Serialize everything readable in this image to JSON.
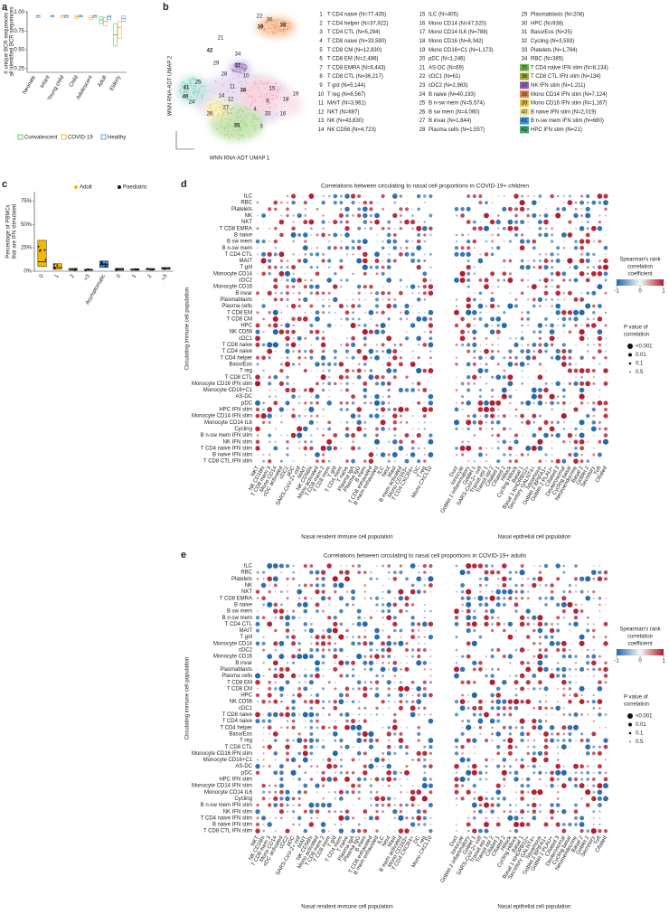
{
  "panel_labels": [
    "a",
    "b",
    "c",
    "d",
    "e"
  ],
  "panel_a": {
    "type": "box",
    "y_label": [
      "# unique BCR sequences /",
      "all identified BCR sequences"
    ],
    "categories": [
      "Neonate",
      "Infant",
      "Young child",
      "Child",
      "Adolescent",
      "Adult",
      "Elderly"
    ],
    "ylim": [
      0.2,
      1.02
    ],
    "yticks": [
      0.25,
      {
        "value": 0.5,
        "label": "0.50"
      },
      0.75,
      {
        "value": 1,
        "label": "1.00"
      }
    ],
    "series": [
      {
        "name": "Convalescent",
        "color": "#4daf4a",
        "q1": [
          null,
          null,
          null,
          null,
          null,
          0.85,
          0.55
        ],
        "values": [
          null,
          null,
          null,
          null,
          null,
          0.9,
          0.7
        ],
        "q3": [
          null,
          null,
          null,
          null,
          null,
          0.94,
          0.85
        ]
      },
      {
        "name": "COVID-19",
        "color": "#f0a020",
        "q1": [
          null,
          null,
          0.93,
          0.92,
          0.9,
          0.82,
          0.65
        ],
        "values": [
          null,
          null,
          0.95,
          0.94,
          0.93,
          0.88,
          0.8
        ],
        "q3": [
          null,
          null,
          0.96,
          0.96,
          0.95,
          0.93,
          0.88
        ]
      },
      {
        "name": "Healthy",
        "color": "#3a8fd0",
        "q1": [
          0.93,
          0.94,
          0.93,
          0.94,
          0.93,
          0.9,
          0.88
        ],
        "values": [
          0.95,
          0.95,
          0.95,
          0.95,
          0.95,
          0.94,
          0.92
        ],
        "q3": [
          0.96,
          0.96,
          0.96,
          0.96,
          0.96,
          0.96,
          0.95
        ]
      }
    ]
  },
  "panel_b": {
    "x_label": "WNN RNA-ADT UMAP 1",
    "y_label": "WNN RNA-ADT UMAP 2",
    "cluster_labels": [
      "38",
      "39",
      "42",
      "37",
      "36",
      "35",
      "41",
      "40",
      "22",
      "30",
      "21",
      "29",
      "34",
      "28",
      "25",
      "24",
      "10",
      "11",
      "14",
      "15",
      "18",
      "19",
      "16",
      "33",
      "26",
      "27",
      "8",
      "12",
      "4",
      "3"
    ],
    "legend": [
      {
        "number": "1",
        "text": "T CD4 naive (N=77,435)"
      },
      {
        "number": "2",
        "text": "T CD4 helper (N=37,922)"
      },
      {
        "number": "3",
        "text": "T CD4 CTL (N=5,294)"
      },
      {
        "number": "4",
        "text": "T CD8 naive (N=33,590)"
      },
      {
        "number": "5",
        "text": "T CD8 CM (N=12,830)"
      },
      {
        "number": "6",
        "text": "T CD8 EM (N=2,486)"
      },
      {
        "number": "7",
        "text": "T CD8 EMRA (N=6,443)"
      },
      {
        "number": "8",
        "text": "T CD8 CTL (N=36,217)"
      },
      {
        "number": "9",
        "text": "T g/d (N=5,144)"
      },
      {
        "number": "10",
        "text": "T reg (N=8,567)"
      },
      {
        "number": "11",
        "text": "MAIT (N=3,961)"
      },
      {
        "number": "12",
        "text": "NKT (N=687)"
      },
      {
        "number": "13",
        "text": "NK (N=43,630)"
      },
      {
        "number": "14",
        "text": "NK CD56 (N=4,723)"
      },
      {
        "number": "15",
        "text": "ILC (N=405)"
      },
      {
        "number": "16",
        "text": "Mono CD14 (N=47,520)"
      },
      {
        "number": "17",
        "text": "Mono CD14 IL6 (N=788)"
      },
      {
        "number": "18",
        "text": "Mono CD16 (N=8,342)"
      },
      {
        "number": "19",
        "text": "Mono CD16+C1 (N=1,173)"
      },
      {
        "number": "20",
        "text": "pDC (N=1,246)"
      },
      {
        "number": "21",
        "text": "AS-DC (N=69)"
      },
      {
        "number": "22",
        "text": "cDC1 (N=61)"
      },
      {
        "number": "23",
        "text": "cDC2 (N=2,963)"
      },
      {
        "number": "24",
        "text": "B naive (N=40,193)"
      },
      {
        "number": "25",
        "text": "B n-sw mem (N=5,574)"
      },
      {
        "number": "26",
        "text": "B sw mem (N=4,060)"
      },
      {
        "number": "27",
        "text": "B invar (N=1,844)"
      },
      {
        "number": "28",
        "text": "Plasma cells (N=1,557)"
      },
      {
        "number": "29",
        "text": "Plasmablasts (N=208)"
      },
      {
        "number": "30",
        "text": "HPC (N=938)"
      },
      {
        "number": "31",
        "text": "Baso/Eos (N=25)"
      },
      {
        "number": "32",
        "text": "Cycling (N=3,593)"
      },
      {
        "number": "33",
        "text": "Platelets (N=1,784)"
      },
      {
        "number": "34",
        "text": "RBC (N=385)"
      },
      {
        "number": "35",
        "text": "T CD4 naive IFN stim (N=8,134)",
        "color": "#6dbb45"
      },
      {
        "number": "36",
        "text": "T CD8 CTL IFN stim (N=134)",
        "color": "#a6a83a"
      },
      {
        "number": "37",
        "text": "NK IFN stim (N=1,211)",
        "color": "#8a64b0"
      },
      {
        "number": "38",
        "text": "Mono CD14 IFN stim (N=7,124)",
        "color": "#e8803c"
      },
      {
        "number": "39",
        "text": "Mono CD16 IFN stim (N=1,167)",
        "color": "#e9c23e"
      },
      {
        "number": "40",
        "text": "B naive IFN stim (N=2,019)",
        "color": "#efe08a"
      },
      {
        "number": "41",
        "text": "B n-sw mem IFN stim (N=680)",
        "color": "#3c93d2"
      },
      {
        "number": "42",
        "text": "HPC IFN stim (N=21)",
        "color": "#3aa860"
      }
    ]
  },
  "panel_c": {
    "type": "box",
    "y_label": [
      "Percentage of PBMCs",
      "that are IFN stimulated"
    ],
    "categories": [
      "0",
      "1",
      "2",
      ">3",
      "Asymptomatic",
      "0",
      "1",
      "2",
      ">3"
    ],
    "ylim": [
      0,
      85
    ],
    "yticks": [
      {
        "value": 0,
        "label": "0%"
      },
      {
        "value": 25,
        "label": "25%"
      },
      {
        "value": 50,
        "label": "50%"
      },
      {
        "value": 75,
        "label": "75%"
      }
    ],
    "series": [
      {
        "name": "Adult",
        "color": "#f5b800",
        "q1": [
          5,
          2,
          1,
          1,
          null,
          null,
          null,
          null,
          null
        ],
        "values": [
          10,
          4,
          2,
          1.5,
          null,
          null,
          null,
          null,
          null
        ],
        "q3": [
          33,
          8,
          3,
          2,
          null,
          null,
          null,
          null,
          null
        ]
      },
      {
        "name": "Paediatric",
        "color": "#2a8fd0",
        "q1": [
          null,
          null,
          null,
          null,
          4,
          1,
          1,
          1.5,
          2
        ],
        "values": [
          null,
          null,
          null,
          null,
          7,
          2,
          2,
          2,
          3
        ],
        "q3": [
          null,
          null,
          null,
          null,
          11,
          3,
          2.5,
          3,
          4
        ]
      }
    ]
  },
  "panel_d": {
    "title": "Correlations between circulating to nasal cell proportions in COVID-19+ children",
    "y_label": "Circulating immune cell population",
    "x_label_immune": "Nasal resident immune cell population",
    "x_label_epithelial": "Nasal epithelial cell population",
    "rows": [
      "ILC",
      "RBC",
      "Platelets",
      "NK",
      "NKT",
      "T CD8 EMRA",
      "B naive",
      "B sw mem",
      "B n-sw mem",
      "T CD4 CTL",
      "MAIT",
      "T g/d",
      "Monocyte CD14",
      "cDC2",
      "Monocyte CD16",
      "B invar",
      "Plasmablasts",
      "Plasma cells",
      "T CD8 EM",
      "T CD8 CM",
      "HPC",
      "NK CD56",
      "cDC1",
      "T CD8 naive",
      "T CD4 naive",
      "T CD4 helper",
      "Baso/Eos",
      "T reg",
      "T CD8 CTL",
      "Monocyte CD16 IFN stim",
      "Monocyte CD16+C1",
      "AS-DC",
      "pDC",
      "HPC IFN stim",
      "Monocyte CD14 IFN stim",
      "Monocyte CD14 IL6",
      "Cycling",
      "B n-sw mem IFN stim",
      "NK IFN stim",
      "T CD4 naive IFN stim",
      "B naive IFN stim",
      "T CD8 CTL IFN stim"
    ],
    "immune_columns": [
      "NKT",
      "NK CD16hi",
      "T CD8 mem 3",
      "Mono CD14",
      "cDC activated",
      "cDC2",
      "pDC",
      "SARS-CoV-2+ cell",
      "MAIT",
      "NK CD56hi",
      "Mono activated",
      "T CD8 mem 2",
      "T CD8 mem",
      "T g/d",
      "T CD4 mem",
      "T naive",
      "Plasma IgA",
      "Plasma IgG",
      "B mem",
      "T CD8 exhausted",
      "B mem exhausted",
      "ILC",
      "Neut",
      "Mast",
      "B mem activated",
      "Mono CD163+",
      "T CD4 CXCR4+",
      "DC",
      "T reg",
      "Mono CXCL10"
    ],
    "epithelial_columns": [
      "Duct",
      "Ionocyte",
      "Goblet 2 inflammatory",
      "Goblet 1",
      "SARS-CoV-2+ cell",
      "Transit epi 1",
      "Transit epi 2",
      "Ciliated 1",
      "Ciliated 2",
      "Hillock",
      "Cycling Hillock",
      "Basal 1",
      "Basal 1 KHDRBS2+",
      "Secretory GALNT4+",
      "Squamous",
      "Goblet 2 BPIFA1+",
      "Goblet 2 PLAU+",
      "Ciliated 3",
      "Deuterosomal",
      "Cycling basal",
      "Neuroendocrine",
      "Basal 2",
      "Goblet 2",
      "Secretory",
      "Tuft",
      "Ciliated"
    ],
    "colorbar_title": [
      "Spearman's rank",
      "correlation",
      "coefficient"
    ],
    "colorbar_ticks": [
      -1,
      0,
      1
    ],
    "pvalue_title": [
      "P value of",
      "correlation"
    ],
    "pvalue_labels": [
      "<0.001",
      "0.01",
      "0.1",
      "0.5"
    ]
  },
  "panel_e": {
    "title": "Correlations between circulating to nasal cell proportions in COVID-19+ adults",
    "y_label": "Circulating immune cell population",
    "x_label_immune": "Nasal resident immune cell population",
    "x_label_epithelial": "Nasal epithelial cell population",
    "rows": [
      "ILC",
      "RBC",
      "Platelets",
      "NK",
      "NKT",
      "T CD8 EMRA",
      "B naive",
      "B sw mem",
      "B n-sw mem",
      "T CD4 CTL",
      "MAIT",
      "T g/d",
      "Monocyte CD14",
      "cDC2",
      "Monocyte CD16",
      "B invar",
      "Plasmablasts",
      "Plasma cells",
      "T CD8 EM",
      "T CD8 CM",
      "HPC",
      "NK CD56",
      "cDC1",
      "T CD8 naive",
      "T CD4 naive",
      "T CD4 helper",
      "Baso/Eos",
      "T reg",
      "T CD8 CTL",
      "Monocyte CD16 IFN stim",
      "Monocyte CD16+C1",
      "AS-DC",
      "pDC",
      "HPC IFN stim",
      "Monocyte CD14 IFN stim",
      "Monocyte CD14 IL6",
      "Cycling",
      "B n-sw mem IFN stim",
      "NK IFN stim",
      "T CD4 naive IFN stim",
      "B naive IFN stim",
      "T CD8 CTL IFN stim"
    ],
    "immune_columns": [
      "NKT",
      "NK CD16hi",
      "T CD8 mem 3",
      "Mono CD14",
      "cDC activated",
      "cDC2",
      "pDC",
      "SARS-CoV-2+ cell",
      "MAIT",
      "NK CD56hi",
      "Mono activated",
      "T CD8 mem 2",
      "T CD8 mem",
      "T g/d",
      "T CD4 mem",
      "T naive",
      "Plasma IgA",
      "Plasma IgG",
      "B mem",
      "T CD8 exhausted",
      "B mem exhausted",
      "ILC",
      "Neut",
      "Mast",
      "B mem activated",
      "Mono CD163+",
      "T CD4 CXCR4+",
      "DC",
      "T reg",
      "Mono CXCL10"
    ],
    "epithelial_columns": [
      "Duct",
      "Ionocyte",
      "Goblet 2 inflammatory",
      "Goblet 1",
      "SARS-CoV-2+ cell",
      "Transit epi 1",
      "Transit epi 2",
      "Ciliated 1",
      "Ciliated 2",
      "Hillock",
      "Cycling Hillock",
      "Basal 1",
      "Basal 1 KHDRBS2+",
      "Secretory GALNT4+",
      "Squamous",
      "Goblet 2 BPIFA1+",
      "Goblet 2 PLAU+",
      "Ciliated 3",
      "Deuterosomal",
      "Cycling basal",
      "Neuroendocrine",
      "Basal 2",
      "Goblet 2",
      "Secretory",
      "Tuft",
      "Ciliated"
    ],
    "colorbar_title": [
      "Spearman's rank",
      "correlation",
      "coefficient"
    ],
    "colorbar_ticks": [
      -1,
      0,
      1
    ],
    "pvalue_title": [
      "P value of",
      "correlation"
    ],
    "pvalue_labels": [
      "<0.001",
      "0.01",
      "0.1",
      "0.5"
    ]
  }
}
